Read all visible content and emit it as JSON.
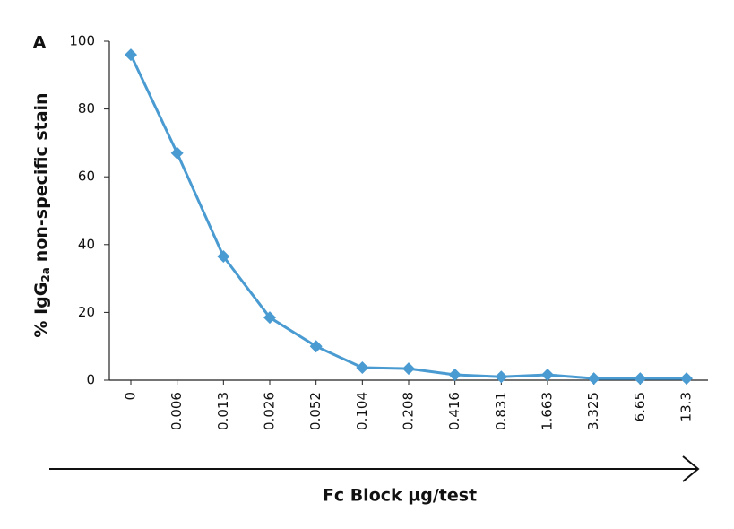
{
  "chart_data": {
    "type": "line",
    "panel_label": "A",
    "ylabel": [
      "% IgG",
      "2a",
      "non-specific stain"
    ],
    "xlabel": "Fc Block µg/test",
    "categories": [
      "0",
      "0.006",
      "0.013",
      "0.026",
      "0.052",
      "0.104",
      "0.208",
      "0.416",
      "0.831",
      "1.663",
      "3.325",
      "6.65",
      "13.3"
    ],
    "values": [
      96,
      67,
      36.5,
      18.5,
      10,
      3.7,
      3.4,
      1.6,
      1,
      1.6,
      0.5,
      0.5,
      0.5
    ],
    "color": "#4a9bd1",
    "ylim": [
      0,
      100
    ],
    "yticks": [
      0,
      20,
      40,
      60,
      80,
      100
    ]
  }
}
